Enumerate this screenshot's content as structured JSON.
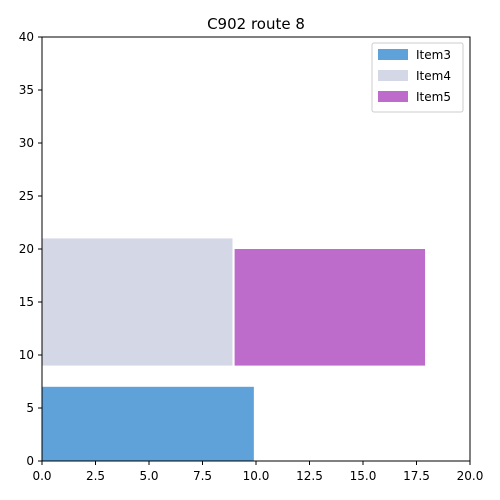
{
  "chart_data": {
    "type": "bar",
    "title": "C902 route 8",
    "xlabel": "",
    "ylabel": "",
    "xlim": [
      0,
      20
    ],
    "ylim": [
      0,
      40
    ],
    "xticks": [
      "0.0",
      "2.5",
      "5.0",
      "7.5",
      "10.0",
      "12.5",
      "15.0",
      "17.5",
      "20.0"
    ],
    "yticks": [
      "0",
      "5",
      "10",
      "15",
      "20",
      "25",
      "30",
      "35",
      "40"
    ],
    "grid": false,
    "legend_position": "top-right",
    "series": [
      {
        "name": "Item3",
        "color": "#5fa2d9",
        "rect": {
          "x0": 0,
          "x1": 9.9,
          "y0": 0,
          "y1": 7
        }
      },
      {
        "name": "Item4",
        "color": "#d4d7e5",
        "rect": {
          "x0": 0,
          "x1": 8.9,
          "y0": 9,
          "y1": 21
        }
      },
      {
        "name": "Item5",
        "color": "#bd6ccc",
        "rect": {
          "x0": 9.0,
          "x1": 17.9,
          "y0": 9,
          "y1": 20
        }
      }
    ]
  }
}
